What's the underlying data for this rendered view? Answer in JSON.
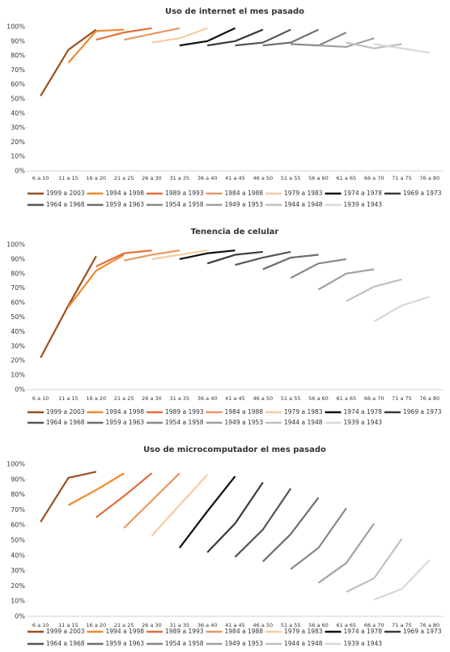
{
  "chart_data": [
    {
      "type": "line",
      "title": "Uso de internet el mes pasado",
      "categories": [
        "6 a 10",
        "11 a 15",
        "16 a 20",
        "21 a 25",
        "26 a 30",
        "31 a 35",
        "36 a 40",
        "41 a 45",
        "46 a 50",
        "51 a 55",
        "56 a 60",
        "61 a 65",
        "66 a 70",
        "71 a 75",
        "76 a 80"
      ],
      "ylim": [
        0,
        100
      ],
      "yticks": [
        {
          "value": 0,
          "label": "0%"
        },
        {
          "value": 10,
          "label": "10%"
        },
        {
          "value": 20,
          "label": "20%"
        },
        {
          "value": 30,
          "label": "30%"
        },
        {
          "value": 40,
          "label": "40%"
        },
        {
          "value": 50,
          "label": "50%"
        },
        {
          "value": 60,
          "label": "60%"
        },
        {
          "value": 70,
          "label": "70%"
        },
        {
          "value": 80,
          "label": "80%"
        },
        {
          "value": 90,
          "label": "90%"
        },
        {
          "value": 100,
          "label": "100%"
        }
      ],
      "series": [
        {
          "name": "1999 a 2003",
          "color": "#9c4f1e",
          "values": [
            52,
            84,
            98,
            null,
            null,
            null,
            null,
            null,
            null,
            null,
            null,
            null,
            null,
            null,
            null
          ]
        },
        {
          "name": "1994 a 1998",
          "color": "#f08a2c",
          "values": [
            null,
            75,
            97,
            98,
            null,
            null,
            null,
            null,
            null,
            null,
            null,
            null,
            null,
            null,
            null
          ]
        },
        {
          "name": "1989 a 1993",
          "color": "#e0703a",
          "values": [
            null,
            null,
            91,
            96,
            99,
            null,
            null,
            null,
            null,
            null,
            null,
            null,
            null,
            null,
            null
          ]
        },
        {
          "name": "1984 a 1988",
          "color": "#e99660",
          "values": [
            null,
            null,
            null,
            91,
            95,
            99,
            null,
            null,
            null,
            null,
            null,
            null,
            null,
            null,
            null
          ]
        },
        {
          "name": "1979 a 1983",
          "color": "#f6cba3",
          "values": [
            null,
            null,
            null,
            null,
            89,
            92,
            99,
            null,
            null,
            null,
            null,
            null,
            null,
            null,
            null
          ]
        },
        {
          "name": "1974 a 1978",
          "color": "#111111",
          "values": [
            null,
            null,
            null,
            null,
            null,
            87,
            90,
            99,
            null,
            null,
            null,
            null,
            null,
            null,
            null
          ]
        },
        {
          "name": "1969 a 1973",
          "color": "#3a3a3a",
          "values": [
            null,
            null,
            null,
            null,
            null,
            null,
            87,
            90,
            98,
            null,
            null,
            null,
            null,
            null,
            null
          ]
        },
        {
          "name": "1964 a 1968",
          "color": "#555555",
          "values": [
            null,
            null,
            null,
            null,
            null,
            null,
            null,
            87,
            89,
            98,
            null,
            null,
            null,
            null,
            null
          ]
        },
        {
          "name": "1959 a 1963",
          "color": "#6e6e6e",
          "values": [
            null,
            null,
            null,
            null,
            null,
            null,
            null,
            null,
            87,
            89,
            98,
            null,
            null,
            null,
            null
          ]
        },
        {
          "name": "1954 a 1958",
          "color": "#888888",
          "values": [
            null,
            null,
            null,
            null,
            null,
            null,
            null,
            null,
            null,
            88,
            87,
            96,
            null,
            null,
            null
          ]
        },
        {
          "name": "1949 a 1953",
          "color": "#a0a0a0",
          "values": [
            null,
            null,
            null,
            null,
            null,
            null,
            null,
            null,
            null,
            null,
            87,
            86,
            92,
            null,
            null
          ]
        },
        {
          "name": "1944 a 1948",
          "color": "#c0c0c0",
          "values": [
            null,
            null,
            null,
            null,
            null,
            null,
            null,
            null,
            null,
            null,
            null,
            89,
            85,
            88,
            null
          ]
        },
        {
          "name": "1939 a 1943",
          "color": "#d8d8d8",
          "values": [
            null,
            null,
            null,
            null,
            null,
            null,
            null,
            null,
            null,
            null,
            null,
            null,
            88,
            85,
            82
          ]
        }
      ]
    },
    {
      "type": "line",
      "title": "Tenencia de celular",
      "categories": [
        "6 a 10",
        "11 a 15",
        "16 a 20",
        "21 a 25",
        "26 a 30",
        "31 a 35",
        "36 a 40",
        "41 a 45",
        "46 a 50",
        "51 a 55",
        "56 a 60",
        "61 a 65",
        "66 a 70",
        "71 a 75",
        "76 a 80"
      ],
      "ylim": [
        0,
        100
      ],
      "yticks": [
        {
          "value": 0,
          "label": "0%"
        },
        {
          "value": 10,
          "label": "10%"
        },
        {
          "value": 20,
          "label": "20%"
        },
        {
          "value": 30,
          "label": "30%"
        },
        {
          "value": 40,
          "label": "40%"
        },
        {
          "value": 50,
          "label": "50%"
        },
        {
          "value": 60,
          "label": "60%"
        },
        {
          "value": 70,
          "label": "70%"
        },
        {
          "value": 80,
          "label": "80%"
        },
        {
          "value": 90,
          "label": "90%"
        },
        {
          "value": 100,
          "label": "100%"
        }
      ],
      "series": [
        {
          "name": "1999 a 2003",
          "color": "#9c4f1e",
          "values": [
            22,
            58,
            92,
            null,
            null,
            null,
            null,
            null,
            null,
            null,
            null,
            null,
            null,
            null,
            null
          ]
        },
        {
          "name": "1994 a 1998",
          "color": "#f08a2c",
          "values": [
            null,
            57,
            82,
            93,
            null,
            null,
            null,
            null,
            null,
            null,
            null,
            null,
            null,
            null,
            null
          ]
        },
        {
          "name": "1989 a 1993",
          "color": "#e0703a",
          "values": [
            null,
            null,
            85,
            94,
            96,
            null,
            null,
            null,
            null,
            null,
            null,
            null,
            null,
            null,
            null
          ]
        },
        {
          "name": "1984 a 1988",
          "color": "#e99660",
          "values": [
            null,
            null,
            null,
            89,
            93,
            96,
            null,
            null,
            null,
            null,
            null,
            null,
            null,
            null,
            null
          ]
        },
        {
          "name": "1979 a 1983",
          "color": "#f6cba3",
          "values": [
            null,
            null,
            null,
            null,
            90,
            93,
            96,
            null,
            null,
            null,
            null,
            null,
            null,
            null,
            null
          ]
        },
        {
          "name": "1974 a 1978",
          "color": "#111111",
          "values": [
            null,
            null,
            null,
            null,
            null,
            90,
            94,
            96,
            null,
            null,
            null,
            null,
            null,
            null,
            null
          ]
        },
        {
          "name": "1969 a 1973",
          "color": "#3a3a3a",
          "values": [
            null,
            null,
            null,
            null,
            null,
            null,
            87,
            93,
            95,
            null,
            null,
            null,
            null,
            null,
            null
          ]
        },
        {
          "name": "1964 a 1968",
          "color": "#555555",
          "values": [
            null,
            null,
            null,
            null,
            null,
            null,
            null,
            86,
            91,
            95,
            null,
            null,
            null,
            null,
            null
          ]
        },
        {
          "name": "1959 a 1963",
          "color": "#6e6e6e",
          "values": [
            null,
            null,
            null,
            null,
            null,
            null,
            null,
            null,
            83,
            91,
            93,
            null,
            null,
            null,
            null
          ]
        },
        {
          "name": "1954 a 1958",
          "color": "#888888",
          "values": [
            null,
            null,
            null,
            null,
            null,
            null,
            null,
            null,
            null,
            77,
            87,
            90,
            null,
            null,
            null
          ]
        },
        {
          "name": "1949 a 1953",
          "color": "#a0a0a0",
          "values": [
            null,
            null,
            null,
            null,
            null,
            null,
            null,
            null,
            null,
            null,
            69,
            80,
            83,
            null,
            null
          ]
        },
        {
          "name": "1944 a 1948",
          "color": "#c0c0c0",
          "values": [
            null,
            null,
            null,
            null,
            null,
            null,
            null,
            null,
            null,
            null,
            null,
            61,
            71,
            76,
            null
          ]
        },
        {
          "name": "1939 a 1943",
          "color": "#d8d8d8",
          "values": [
            null,
            null,
            null,
            null,
            null,
            null,
            null,
            null,
            null,
            null,
            null,
            null,
            47,
            58,
            64
          ]
        }
      ]
    },
    {
      "type": "line",
      "title": "Uso de microcomputador el mes pasado",
      "categories": [
        "6 a 10",
        "11 a 15",
        "16 a 20",
        "21 a 25",
        "26 a 30",
        "31 a 35",
        "36 a 40",
        "41 a 45",
        "46 a 50",
        "51 a 55",
        "56 a 60",
        "61 a 65",
        "66 a 70",
        "71 a 75",
        "76 a 80"
      ],
      "ylim": [
        0,
        100
      ],
      "yticks": [
        {
          "value": 0,
          "label": "0%"
        },
        {
          "value": 10,
          "label": "10%"
        },
        {
          "value": 20,
          "label": "20%"
        },
        {
          "value": 30,
          "label": "30%"
        },
        {
          "value": 40,
          "label": "40%"
        },
        {
          "value": 50,
          "label": "50%"
        },
        {
          "value": 60,
          "label": "60%"
        },
        {
          "value": 70,
          "label": "70%"
        },
        {
          "value": 80,
          "label": "80%"
        },
        {
          "value": 90,
          "label": "90%"
        },
        {
          "value": 100,
          "label": "100%"
        }
      ],
      "series": [
        {
          "name": "1999 a 2003",
          "color": "#9c4f1e",
          "values": [
            62,
            91,
            95,
            null,
            null,
            null,
            null,
            null,
            null,
            null,
            null,
            null,
            null,
            null,
            null
          ]
        },
        {
          "name": "1994 a 1998",
          "color": "#f08a2c",
          "values": [
            null,
            73,
            83,
            94,
            null,
            null,
            null,
            null,
            null,
            null,
            null,
            null,
            null,
            null,
            null
          ]
        },
        {
          "name": "1989 a 1993",
          "color": "#e0703a",
          "values": [
            null,
            null,
            65,
            79,
            94,
            null,
            null,
            null,
            null,
            null,
            null,
            null,
            null,
            null,
            null
          ]
        },
        {
          "name": "1984 a 1988",
          "color": "#e99660",
          "values": [
            null,
            null,
            null,
            58,
            76,
            94,
            null,
            null,
            null,
            null,
            null,
            null,
            null,
            null,
            null
          ]
        },
        {
          "name": "1979 a 1983",
          "color": "#f6cba3",
          "values": [
            null,
            null,
            null,
            null,
            53,
            73,
            93,
            null,
            null,
            null,
            null,
            null,
            null,
            null,
            null
          ]
        },
        {
          "name": "1974 a 1978",
          "color": "#111111",
          "values": [
            null,
            null,
            null,
            null,
            null,
            45,
            69,
            92,
            null,
            null,
            null,
            null,
            null,
            null,
            null
          ]
        },
        {
          "name": "1969 a 1973",
          "color": "#3a3a3a",
          "values": [
            null,
            null,
            null,
            null,
            null,
            null,
            42,
            61,
            88,
            null,
            null,
            null,
            null,
            null,
            null
          ]
        },
        {
          "name": "1964 a 1968",
          "color": "#555555",
          "values": [
            null,
            null,
            null,
            null,
            null,
            null,
            null,
            39,
            57,
            84,
            null,
            null,
            null,
            null,
            null
          ]
        },
        {
          "name": "1959 a 1963",
          "color": "#6e6e6e",
          "values": [
            null,
            null,
            null,
            null,
            null,
            null,
            null,
            null,
            36,
            54,
            78,
            null,
            null,
            null,
            null
          ]
        },
        {
          "name": "1954 a 1958",
          "color": "#888888",
          "values": [
            null,
            null,
            null,
            null,
            null,
            null,
            null,
            null,
            null,
            31,
            45,
            71,
            null,
            null,
            null
          ]
        },
        {
          "name": "1949 a 1953",
          "color": "#a0a0a0",
          "values": [
            null,
            null,
            null,
            null,
            null,
            null,
            null,
            null,
            null,
            null,
            22,
            35,
            61,
            null,
            null
          ]
        },
        {
          "name": "1944 a 1948",
          "color": "#c0c0c0",
          "values": [
            null,
            null,
            null,
            null,
            null,
            null,
            null,
            null,
            null,
            null,
            null,
            16,
            25,
            51,
            null
          ]
        },
        {
          "name": "1939 a 1943",
          "color": "#d8d8d8",
          "values": [
            null,
            null,
            null,
            null,
            null,
            null,
            null,
            null,
            null,
            null,
            null,
            null,
            11,
            18,
            37
          ]
        }
      ]
    }
  ]
}
